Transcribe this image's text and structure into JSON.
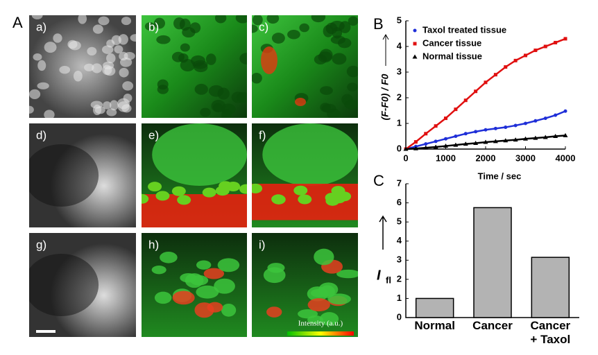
{
  "figure": {
    "panel_labels": [
      "A",
      "B",
      "C"
    ],
    "image_labels": [
      "a)",
      "b)",
      "c)",
      "d)",
      "e)",
      "f)",
      "g)",
      "h)",
      "i)"
    ],
    "colorbar_label": "Intensity (a.u.)"
  },
  "chart_data": [
    {
      "type": "line",
      "xlabel": "Time / sec",
      "ylabel": "(F-F0) / F0",
      "x": [
        0,
        250,
        500,
        750,
        1000,
        1250,
        1500,
        1750,
        2000,
        2250,
        2500,
        2750,
        3000,
        3250,
        3500,
        3750,
        4000
      ],
      "series": [
        {
          "name": "Taxol treated tissue",
          "color": "#1f2fd8",
          "marker": "circle",
          "values": [
            0,
            0.1,
            0.2,
            0.3,
            0.4,
            0.5,
            0.6,
            0.68,
            0.75,
            0.8,
            0.85,
            0.92,
            1.0,
            1.1,
            1.2,
            1.32,
            1.48
          ]
        },
        {
          "name": "Cancer tissue",
          "color": "#e01010",
          "marker": "square",
          "values": [
            0,
            0.28,
            0.6,
            0.9,
            1.2,
            1.55,
            1.9,
            2.25,
            2.6,
            2.9,
            3.2,
            3.45,
            3.65,
            3.85,
            4.0,
            4.15,
            4.3
          ]
        },
        {
          "name": "Normal tissue",
          "color": "#000000",
          "marker": "triangle",
          "values": [
            0,
            0.02,
            0.05,
            0.08,
            0.12,
            0.16,
            0.2,
            0.23,
            0.27,
            0.3,
            0.33,
            0.36,
            0.4,
            0.43,
            0.46,
            0.5,
            0.53
          ]
        }
      ],
      "xlim": [
        0,
        4000
      ],
      "xticks": [
        0,
        1000,
        2000,
        3000,
        4000
      ],
      "ylim": [
        0,
        5
      ],
      "yticks": [
        0,
        1,
        2,
        3,
        4,
        5
      ],
      "legend": "upper left"
    },
    {
      "type": "bar",
      "ylabel": "I",
      "ylabel_subscript": "fl",
      "categories": [
        "Normal",
        "Cancer",
        "Cancer + Taxol"
      ],
      "values": [
        1.0,
        5.75,
        3.15
      ],
      "color": "#b3b3b3",
      "ylim": [
        0,
        7
      ],
      "yticks": [
        0,
        1,
        2,
        3,
        4,
        5,
        6,
        7
      ]
    }
  ]
}
